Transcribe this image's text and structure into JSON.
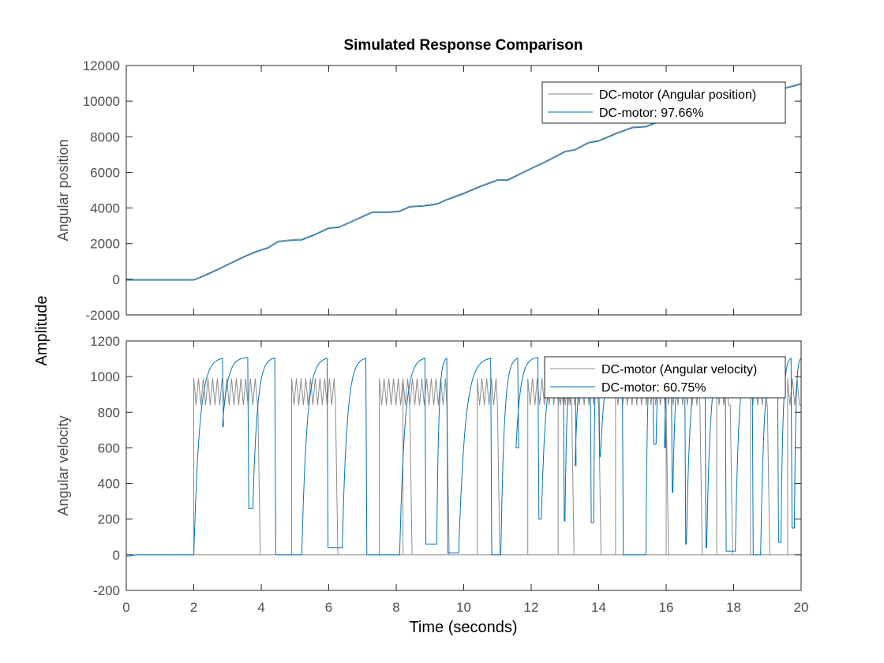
{
  "figure": {
    "title": "Simulated Response Comparison",
    "shared_ylabel": "Amplitude",
    "shared_xlabel": "Time (seconds)"
  },
  "colors": {
    "measured": "#8c8c8c",
    "simulated": "#0072bd",
    "axis": "#262626",
    "tick_text": "#4d4d4d"
  },
  "chart_data": [
    {
      "type": "line",
      "ylabel": "Angular position",
      "xlim": [
        0,
        20
      ],
      "ylim": [
        -2000,
        12000
      ],
      "xticks": [
        0,
        2,
        4,
        6,
        8,
        10,
        12,
        14,
        16,
        18,
        20
      ],
      "yticks": [
        -2000,
        0,
        2000,
        4000,
        6000,
        8000,
        10000,
        12000
      ],
      "xtick_labels_shown": false,
      "grid": false,
      "legend_placement": "top-right",
      "series": [
        {
          "name": "DC-motor (Angular position)",
          "color": "#8c8c8c",
          "x": [
            0,
            1,
            2,
            2.1,
            2.5,
            3,
            3.5,
            3.8,
            4.2,
            4.5,
            5,
            5.2,
            5.6,
            6,
            6.3,
            6.6,
            7,
            7.3,
            7.8,
            8.1,
            8.4,
            8.8,
            9.2,
            9.5,
            10,
            10.5,
            11,
            11.3,
            12,
            12.5,
            13,
            13.3,
            13.7,
            14,
            14.5,
            15,
            15.4,
            15.8,
            16.2,
            16.5,
            17,
            17.4,
            17.8,
            18.2,
            18.6,
            19,
            19.4,
            19.7,
            20
          ],
          "y": [
            0,
            0,
            0,
            50,
            400,
            850,
            1300,
            1550,
            1800,
            2150,
            2250,
            2250,
            2550,
            2900,
            2950,
            3200,
            3550,
            3800,
            3800,
            3850,
            4100,
            4150,
            4250,
            4500,
            4850,
            5250,
            5600,
            5600,
            6250,
            6700,
            7200,
            7300,
            7700,
            7800,
            8200,
            8550,
            8600,
            8900,
            9200,
            9300,
            9500,
            9700,
            9900,
            10100,
            10300,
            10500,
            10700,
            10850,
            11000
          ]
        },
        {
          "name": "DC-motor: 97.66%",
          "color": "#0072bd",
          "x": [
            0,
            1,
            2,
            2.1,
            2.5,
            3,
            3.5,
            3.8,
            4.2,
            4.5,
            5,
            5.2,
            5.6,
            6,
            6.3,
            6.6,
            7,
            7.3,
            7.8,
            8.1,
            8.4,
            8.8,
            9.2,
            9.5,
            10,
            10.5,
            11,
            11.3,
            12,
            12.5,
            13,
            13.3,
            13.7,
            14,
            14.5,
            15,
            15.4,
            15.8,
            16.2,
            16.5,
            17,
            17.4,
            17.8,
            18.2,
            18.6,
            19,
            19.4,
            19.7,
            20
          ],
          "y": [
            -50,
            -50,
            -50,
            20,
            350,
            800,
            1250,
            1500,
            1750,
            2100,
            2200,
            2200,
            2500,
            2850,
            2900,
            3150,
            3500,
            3750,
            3750,
            3800,
            4050,
            4100,
            4200,
            4450,
            4800,
            5200,
            5550,
            5550,
            6200,
            6650,
            7150,
            7250,
            7650,
            7750,
            8150,
            8500,
            8550,
            8850,
            9150,
            9250,
            9450,
            9650,
            9850,
            10050,
            10250,
            10450,
            10650,
            10800,
            10950
          ]
        }
      ]
    },
    {
      "type": "line",
      "ylabel": "Angular velocity",
      "xlim": [
        0,
        20
      ],
      "ylim": [
        -200,
        1200
      ],
      "xticks": [
        0,
        2,
        4,
        6,
        8,
        10,
        12,
        14,
        16,
        18,
        20
      ],
      "yticks": [
        -200,
        0,
        200,
        400,
        600,
        800,
        1000,
        1200
      ],
      "xtick_labels_shown": true,
      "grid": false,
      "legend_placement": "top-right",
      "measured_pulses": {
        "name": "DC-motor (Angular velocity)",
        "color": "#8c8c8c",
        "baseline": 0,
        "band_low": 840,
        "band_high": 990,
        "on_intervals": [
          [
            2.0,
            3.9
          ],
          [
            4.9,
            6.2
          ],
          [
            7.5,
            8.4
          ],
          [
            8.2,
            9.5
          ],
          [
            10.4,
            11.0
          ],
          [
            11.9,
            13.2
          ],
          [
            12.8,
            14.0
          ],
          [
            14.5,
            16.0
          ],
          [
            16.0,
            17.0
          ],
          [
            17.5,
            17.9
          ],
          [
            18.5,
            19.0
          ],
          [
            19.6,
            20.0
          ]
        ]
      },
      "simulated_segments": {
        "name": "DC-motor: 60.75%",
        "color": "#0072bd",
        "start": [
          [
            0,
            -10
          ],
          [
            0.3,
            0
          ],
          [
            2.0,
            0
          ]
        ],
        "rises": [
          {
            "t0": 2.0,
            "t1": 2.85,
            "v0": 0,
            "dip": 720
          },
          {
            "t0": 2.85,
            "t1": 3.6,
            "v0": 720,
            "dip": 260
          },
          {
            "t0": 3.75,
            "t1": 4.4,
            "v0": 260,
            "dip": 0
          },
          {
            "t0": 5.2,
            "t1": 5.95,
            "v0": 0,
            "dip": 40
          },
          {
            "t0": 6.4,
            "t1": 7.1,
            "v0": 40,
            "dip": 0
          },
          {
            "t0": 8.1,
            "t1": 8.85,
            "v0": 0,
            "dip": 60
          },
          {
            "t0": 9.2,
            "t1": 9.5,
            "v0": 60,
            "dip": 10
          },
          {
            "t0": 9.85,
            "t1": 10.8,
            "v0": 10,
            "dip": 0
          },
          {
            "t0": 11.1,
            "t1": 11.6,
            "v0": 0,
            "dip": 600
          },
          {
            "t0": 11.55,
            "t1": 12.2,
            "v0": 600,
            "dip": 200
          },
          {
            "t0": 12.3,
            "t1": 12.95,
            "v0": 200,
            "dip": 190
          },
          {
            "t0": 13.0,
            "t1": 13.3,
            "v0": 190,
            "dip": 500
          },
          {
            "t0": 13.3,
            "t1": 13.75,
            "v0": 500,
            "dip": 180
          },
          {
            "t0": 13.85,
            "t1": 14.0,
            "v0": 180,
            "dip": 550
          },
          {
            "t0": 14.05,
            "t1": 14.7,
            "v0": 550,
            "dip": 0
          },
          {
            "t0": 15.4,
            "t1": 15.6,
            "v0": 0,
            "dip": 620
          },
          {
            "t0": 15.7,
            "t1": 15.95,
            "v0": 620,
            "dip": 600
          },
          {
            "t0": 15.95,
            "t1": 16.15,
            "v0": 600,
            "dip": 350
          },
          {
            "t0": 16.2,
            "t1": 16.55,
            "v0": 350,
            "dip": 60
          },
          {
            "t0": 16.6,
            "t1": 17.15,
            "v0": 60,
            "dip": 40
          },
          {
            "t0": 17.2,
            "t1": 17.75,
            "v0": 40,
            "dip": 20
          },
          {
            "t0": 18.05,
            "t1": 18.55,
            "v0": 20,
            "dip": 0
          },
          {
            "t0": 18.8,
            "t1": 19.3,
            "v0": 0,
            "dip": 70
          },
          {
            "t0": 19.4,
            "t1": 19.7,
            "v0": 70,
            "dip": 150
          },
          {
            "t0": 19.8,
            "t1": 20.0,
            "v0": 150,
            "dip": 950
          }
        ],
        "peak": 1110
      }
    }
  ],
  "legends": [
    {
      "entries": [
        "DC-motor (Angular position)",
        "DC-motor: 97.66%"
      ]
    },
    {
      "entries": [
        "DC-motor (Angular velocity)",
        "DC-motor: 60.75%"
      ]
    }
  ]
}
